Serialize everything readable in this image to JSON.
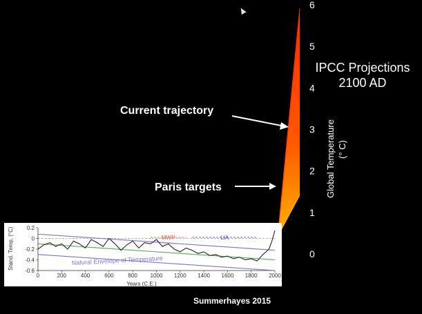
{
  "colors": {
    "background": "#000000",
    "text": "#ffffff",
    "fan_top": "#ff2a00",
    "fan_bottom": "#ffb400",
    "inset_series": "#333333",
    "envelope_line": "#7b7bd0",
    "trend_line": "#60b060",
    "mwp": "#e06030",
    "lia": "#5050c0"
  },
  "right_axis": {
    "ticks": [
      "6",
      "5",
      "4",
      "3",
      "2",
      "1",
      "0"
    ],
    "label_line1": "Global  Temperature",
    "label_line2": "(° C)"
  },
  "title": {
    "line1": "IPCC Projections",
    "line2": "2100 AD"
  },
  "annotations": {
    "current": "Current trajectory",
    "paris": "Paris targets"
  },
  "source": "Summerhayes 2015",
  "chart_data": [
    {
      "type": "area",
      "title": "IPCC Projections 2100 AD",
      "ylabel": "Global  Temperature (° C)",
      "ylim": [
        0,
        6
      ],
      "series": [
        {
          "values": [
            0.4,
            5.9
          ]
        },
        {
          "values": [
            0.4,
            1.4
          ]
        }
      ],
      "annotations": [
        {
          "text": "Current trajectory",
          "y": 3.0
        },
        {
          "text": "Paris targets",
          "y": 1.6
        }
      ]
    },
    {
      "type": "line",
      "xlabel": "Years (C.E.)",
      "ylabel": "Stand. Temp. (°C)",
      "xlim": [
        0,
        2000
      ],
      "ylim": [
        -0.6,
        0.2
      ],
      "x_ticks": [
        "0",
        "200",
        "400",
        "600",
        "800",
        "1000",
        "1200",
        "1400",
        "1600",
        "1800",
        "2000"
      ],
      "y_ticks": [
        "0.2",
        "0",
        "-0.2",
        "-0.4",
        "-0.6"
      ],
      "envelope_label": "Natural Envelope of Temperature",
      "periods": [
        {
          "label": "MWP",
          "x_start": 950,
          "x_end": 1250
        },
        {
          "label": "LIA",
          "x_start": 1300,
          "x_end": 1850
        }
      ],
      "x": [
        0,
        50,
        100,
        150,
        200,
        250,
        300,
        350,
        400,
        450,
        500,
        550,
        600,
        650,
        700,
        750,
        800,
        850,
        900,
        950,
        1000,
        1050,
        1100,
        1150,
        1200,
        1250,
        1300,
        1350,
        1400,
        1450,
        1500,
        1550,
        1600,
        1650,
        1700,
        1750,
        1800,
        1850,
        1900,
        1925,
        1950,
        1975,
        2000
      ],
      "values": [
        -0.2,
        -0.12,
        -0.08,
        -0.15,
        -0.1,
        -0.2,
        -0.05,
        -0.1,
        -0.18,
        -0.02,
        -0.08,
        -0.15,
        0.0,
        -0.1,
        -0.22,
        -0.12,
        -0.05,
        -0.18,
        -0.08,
        -0.1,
        -0.02,
        -0.15,
        -0.1,
        -0.2,
        -0.25,
        -0.18,
        -0.22,
        -0.28,
        -0.25,
        -0.32,
        -0.3,
        -0.35,
        -0.33,
        -0.38,
        -0.35,
        -0.4,
        -0.38,
        -0.42,
        -0.3,
        -0.25,
        -0.2,
        -0.05,
        0.15
      ],
      "envelope_upper": [
        [
          0,
          0.08
        ],
        [
          2000,
          -0.22
        ]
      ],
      "envelope_lower": [
        [
          0,
          -0.3
        ],
        [
          2000,
          -0.6
        ]
      ],
      "trend": [
        [
          0,
          -0.1
        ],
        [
          2000,
          -0.4
        ]
      ]
    }
  ]
}
